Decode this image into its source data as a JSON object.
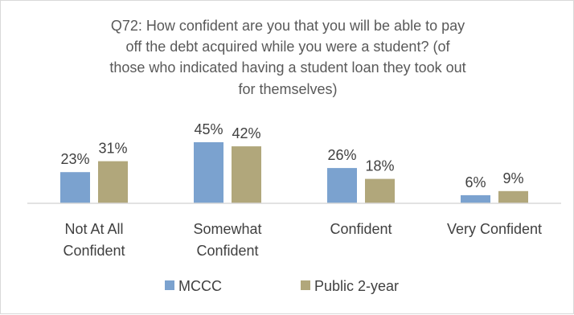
{
  "chart_data": {
    "type": "bar",
    "title_lines": [
      "Q72: How confident are you that you will be able to pay",
      "off the debt acquired while you were a student? (of",
      "those who indicated having a student loan they took out",
      "for themselves)"
    ],
    "categories": [
      [
        "Not At All",
        "Confident"
      ],
      [
        "Somewhat",
        "Confident"
      ],
      [
        "Confident"
      ],
      [
        "Very Confident"
      ]
    ],
    "series": [
      {
        "name": "MCCC",
        "values": [
          23,
          45,
          26,
          6
        ],
        "labels": [
          "23%",
          "45%",
          "26%",
          "6%"
        ],
        "color": "#7ba2cf"
      },
      {
        "name": "Public 2-year",
        "values": [
          31,
          42,
          18,
          9
        ],
        "labels": [
          "31%",
          "42%",
          "18%",
          "9%"
        ],
        "color": "#b1a77b"
      }
    ],
    "ylim": [
      0,
      45
    ],
    "grid": false,
    "legend_position": "bottom"
  }
}
